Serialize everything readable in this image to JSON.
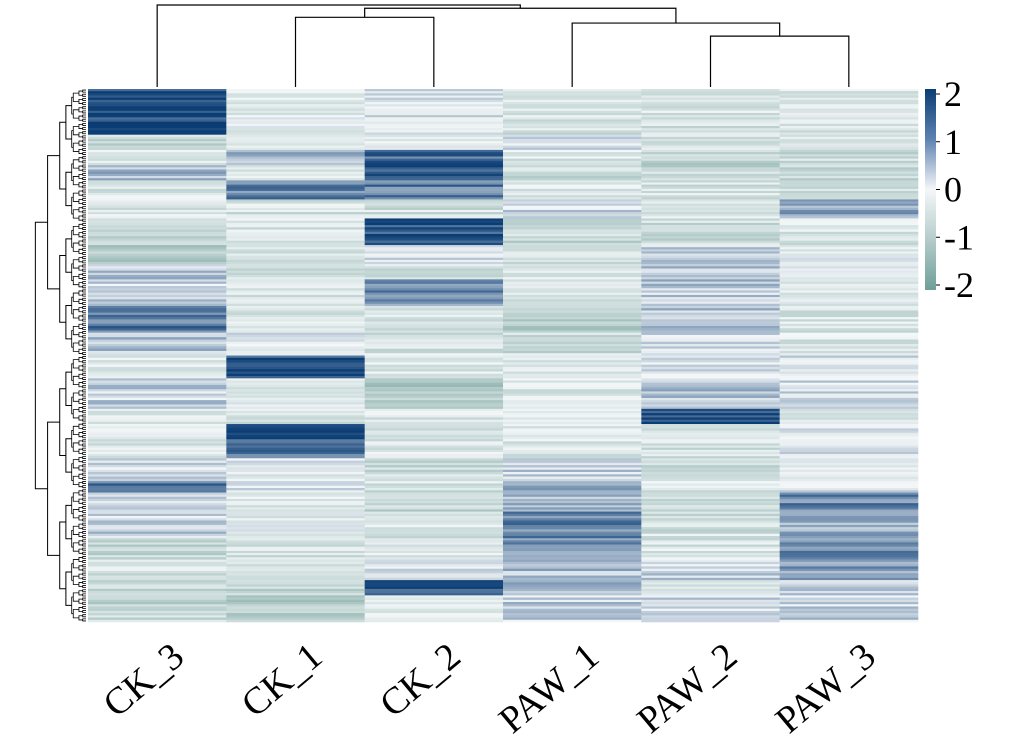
{
  "chart_data": {
    "type": "heatmap",
    "title": "",
    "xlabel": "",
    "ylabel": "",
    "columns": [
      "CK_3",
      "CK_1",
      "CK_2",
      "PAW_1",
      "PAW_2",
      "PAW_3"
    ],
    "column_dendrogram": {
      "leaf_order": [
        "CK_3",
        "CK_1",
        "CK_2",
        "PAW_1",
        "PAW_2",
        "PAW_3"
      ],
      "merges": [
        {
          "left": "PAW_2",
          "right": "PAW_3",
          "level": 0.62
        },
        {
          "left": "PAW_1",
          "right": "PAW_2+PAW_3",
          "level": 0.78
        },
        {
          "left": "CK_1",
          "right": "CK_2",
          "level": 0.85
        },
        {
          "left": "CK_1+CK_2",
          "right": "PAW_1+PAW_2+PAW_3",
          "level": 0.96
        },
        {
          "left": "CK_3",
          "right": "CK_1+CK_2+PAW_1+PAW_2+PAW_3",
          "level": 1.0
        }
      ]
    },
    "row_dendrogram": "present (many rows, unlabeled)",
    "color_scale": {
      "min": -2,
      "max": 2,
      "ticks": [
        2,
        1,
        0,
        -1,
        -2
      ],
      "colors": {
        "low": "#6f9e98",
        "mid": "#f4f7f8",
        "high": "#0b3d75"
      }
    },
    "legend_position": "right",
    "row_segments": [
      {
        "from": 0.0,
        "to": 0.12,
        "values": [
          1.9,
          -0.2,
          0.1,
          -0.5,
          -0.4,
          -0.3
        ]
      },
      {
        "from": 0.12,
        "to": 0.16,
        "values": [
          -0.7,
          -0.4,
          -0.1,
          0.2,
          -0.5,
          -0.2
        ]
      },
      {
        "from": 0.16,
        "to": 0.2,
        "values": [
          -0.4,
          0.6,
          1.5,
          -0.4,
          -0.8,
          -0.6
        ]
      },
      {
        "from": 0.2,
        "to": 0.24,
        "values": [
          0.6,
          -0.3,
          1.7,
          -0.6,
          -0.7,
          -0.7
        ]
      },
      {
        "from": 0.24,
        "to": 0.29,
        "values": [
          -0.4,
          1.2,
          1.3,
          -0.3,
          -0.5,
          -0.5
        ]
      },
      {
        "from": 0.29,
        "to": 0.34,
        "values": [
          -0.3,
          -0.5,
          -0.5,
          0.3,
          -0.3,
          0.9
        ]
      },
      {
        "from": 0.34,
        "to": 0.41,
        "values": [
          -0.6,
          -0.4,
          1.8,
          -0.7,
          -0.6,
          -0.4
        ]
      },
      {
        "from": 0.41,
        "to": 0.46,
        "values": [
          -1.0,
          -0.6,
          0.2,
          -0.4,
          0.4,
          -0.1
        ]
      },
      {
        "from": 0.46,
        "to": 0.5,
        "values": [
          0.5,
          -0.5,
          -0.5,
          -0.3,
          0.6,
          0.1
        ]
      },
      {
        "from": 0.5,
        "to": 0.57,
        "values": [
          0.4,
          -0.4,
          1.1,
          -0.3,
          0.5,
          -0.2
        ]
      },
      {
        "from": 0.57,
        "to": 0.64,
        "values": [
          1.3,
          -0.3,
          -0.4,
          -1.0,
          0.6,
          -0.4
        ]
      },
      {
        "from": 0.64,
        "to": 0.7,
        "values": [
          0.6,
          0.1,
          -0.5,
          -0.6,
          0.2,
          -0.3
        ]
      },
      {
        "from": 0.7,
        "to": 0.76,
        "values": [
          -0.2,
          1.7,
          -0.4,
          -0.2,
          0.4,
          0.2
        ]
      },
      {
        "from": 0.76,
        "to": 0.84,
        "values": [
          0.4,
          -0.2,
          -1.0,
          -0.3,
          0.6,
          0.2
        ]
      },
      {
        "from": 0.84,
        "to": 0.88,
        "values": [
          -0.3,
          -0.4,
          -0.3,
          -0.1,
          1.9,
          -0.2
        ]
      },
      {
        "from": 0.88,
        "to": 0.92,
        "values": [
          -0.2,
          1.8,
          -0.4,
          -0.4,
          -0.4,
          0.1
        ]
      },
      {
        "from": 0.92,
        "to": 0.97,
        "values": [
          -0.3,
          1.5,
          -0.3,
          -0.3,
          -0.5,
          0.2
        ]
      },
      {
        "from": 0.97,
        "to": 1.03,
        "values": [
          0.2,
          0.0,
          -0.6,
          0.4,
          -0.6,
          0.0
        ]
      },
      {
        "from": 1.03,
        "to": 1.06,
        "values": [
          1.4,
          0.1,
          -0.5,
          0.7,
          -0.4,
          0.3
        ]
      },
      {
        "from": 1.06,
        "to": 1.11,
        "values": [
          0.2,
          -0.2,
          -0.7,
          0.6,
          -0.5,
          1.2
        ]
      },
      {
        "from": 1.11,
        "to": 1.18,
        "values": [
          0.4,
          -0.1,
          -0.4,
          1.2,
          -0.5,
          0.7
        ]
      },
      {
        "from": 1.18,
        "to": 1.23,
        "values": [
          -0.8,
          -0.5,
          -0.2,
          1.0,
          -0.4,
          1.1
        ]
      },
      {
        "from": 1.23,
        "to": 1.29,
        "values": [
          -0.5,
          -0.4,
          0.1,
          0.6,
          0.4,
          0.9
        ]
      },
      {
        "from": 1.29,
        "to": 1.33,
        "values": [
          -0.6,
          -0.7,
          1.8,
          0.7,
          -0.2,
          0.3
        ]
      },
      {
        "from": 1.33,
        "to": 1.4,
        "values": [
          -0.7,
          -1.0,
          -0.4,
          0.4,
          0.3,
          0.4
        ]
      }
    ]
  }
}
